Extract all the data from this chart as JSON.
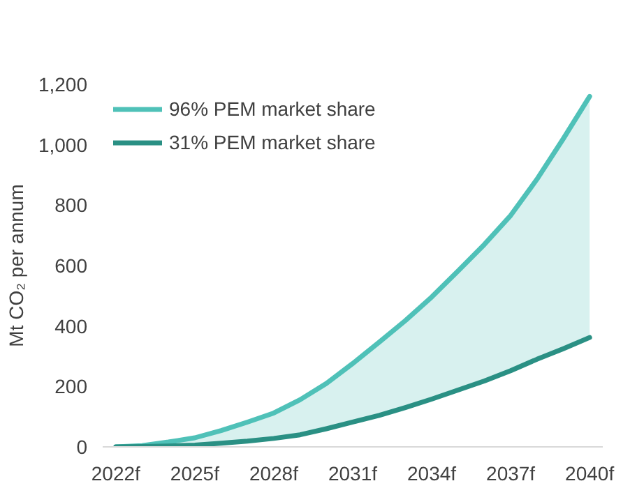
{
  "chart_data": {
    "type": "line",
    "ylabel": "Mt CO₂ per annum",
    "x": [
      2022,
      2023,
      2024,
      2025,
      2026,
      2027,
      2028,
      2029,
      2030,
      2031,
      2032,
      2033,
      2034,
      2035,
      2036,
      2037,
      2038,
      2039,
      2040
    ],
    "series": [
      {
        "name": "96% PEM market share",
        "color": "#4fc1b8",
        "values": [
          0,
          4,
          16,
          30,
          54,
          82,
          112,
          156,
          210,
          276,
          346,
          418,
          496,
          582,
          670,
          766,
          886,
          1020,
          1160
        ],
        "lower": [
          0,
          1,
          3,
          6,
          12,
          19,
          28,
          40,
          60,
          82,
          104,
          130,
          158,
          188,
          218,
          252,
          290,
          325,
          362
        ],
        "upper": [
          0,
          4,
          16,
          30,
          54,
          82,
          112,
          156,
          210,
          276,
          346,
          418,
          496,
          582,
          670,
          766,
          886,
          1020,
          1160
        ]
      },
      {
        "name": "31% PEM market share",
        "color": "#2a9084",
        "values": [
          0,
          1,
          3,
          6,
          12,
          19,
          28,
          40,
          60,
          82,
          104,
          130,
          158,
          188,
          218,
          252,
          290,
          325,
          362
        ]
      }
    ],
    "xlim": [
      2021.5,
      2040.5
    ],
    "xticks": [
      {
        "value": 2022,
        "label": "2022f"
      },
      {
        "value": 2025,
        "label": "2025f"
      },
      {
        "value": 2028,
        "label": "2028f"
      },
      {
        "value": 2031,
        "label": "2031f"
      },
      {
        "value": 2034,
        "label": "2034f"
      },
      {
        "value": 2037,
        "label": "2037f"
      },
      {
        "value": 2040,
        "label": "2040f"
      }
    ],
    "ylim": [
      0,
      1200
    ],
    "yticks": [
      {
        "value": 0,
        "label": "0"
      },
      {
        "value": 200,
        "label": "200"
      },
      {
        "value": 400,
        "label": "400"
      },
      {
        "value": 600,
        "label": "600"
      },
      {
        "value": 800,
        "label": "800"
      },
      {
        "value": 1000,
        "label": "1,000"
      },
      {
        "value": 1200,
        "label": "1,200"
      }
    ],
    "grid": false,
    "legend": "top left",
    "marker": "none",
    "line_style": "solid"
  }
}
